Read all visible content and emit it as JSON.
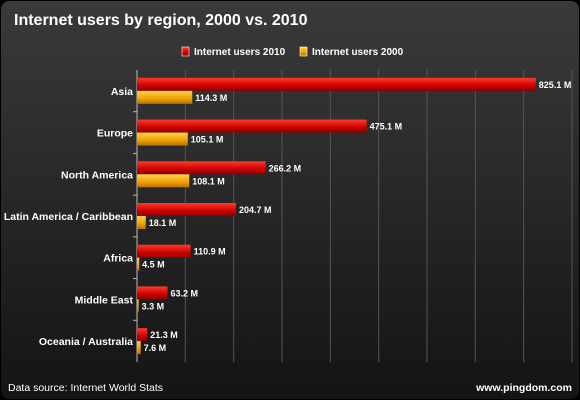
{
  "colors": {
    "series_2010": "#cc0000",
    "series_2010_light": "#ff3a2a",
    "series_2000": "#f0a000",
    "series_2000_light": "#ffd24a",
    "background_top": "#3a3a3a",
    "background_bottom": "#1a1a1a",
    "text": "#ffffff"
  },
  "footer": {
    "source": "Data source: Internet World Stats",
    "site": "www.pingdom.com"
  },
  "chart_data": {
    "type": "bar",
    "orientation": "horizontal",
    "title": "Internet users by region, 2000 vs. 2010",
    "categories": [
      "Asia",
      "Europe",
      "North America",
      "Latin America / Caribbean",
      "Africa",
      "Middle East",
      "Oceania / Australia"
    ],
    "series": [
      {
        "name": "Internet users 2010",
        "values": [
          825.1,
          475.1,
          266.2,
          204.7,
          110.9,
          63.2,
          21.3
        ],
        "labels": [
          "825.1 M",
          "475.1 M",
          "266.2 M",
          "204.7 M",
          "110.9 M",
          "63.2 M",
          "21.3 M"
        ]
      },
      {
        "name": "Internet users 2000",
        "values": [
          114.3,
          105.1,
          108.1,
          18.1,
          4.5,
          3.3,
          7.6
        ],
        "labels": [
          "114.3 M",
          "105.1 M",
          "108.1 M",
          "18.1 M",
          "4.5 M",
          "3.3 M",
          "7.6 M"
        ]
      }
    ],
    "xlim": [
      0,
      900
    ],
    "grid": true,
    "legend_position": "top"
  }
}
